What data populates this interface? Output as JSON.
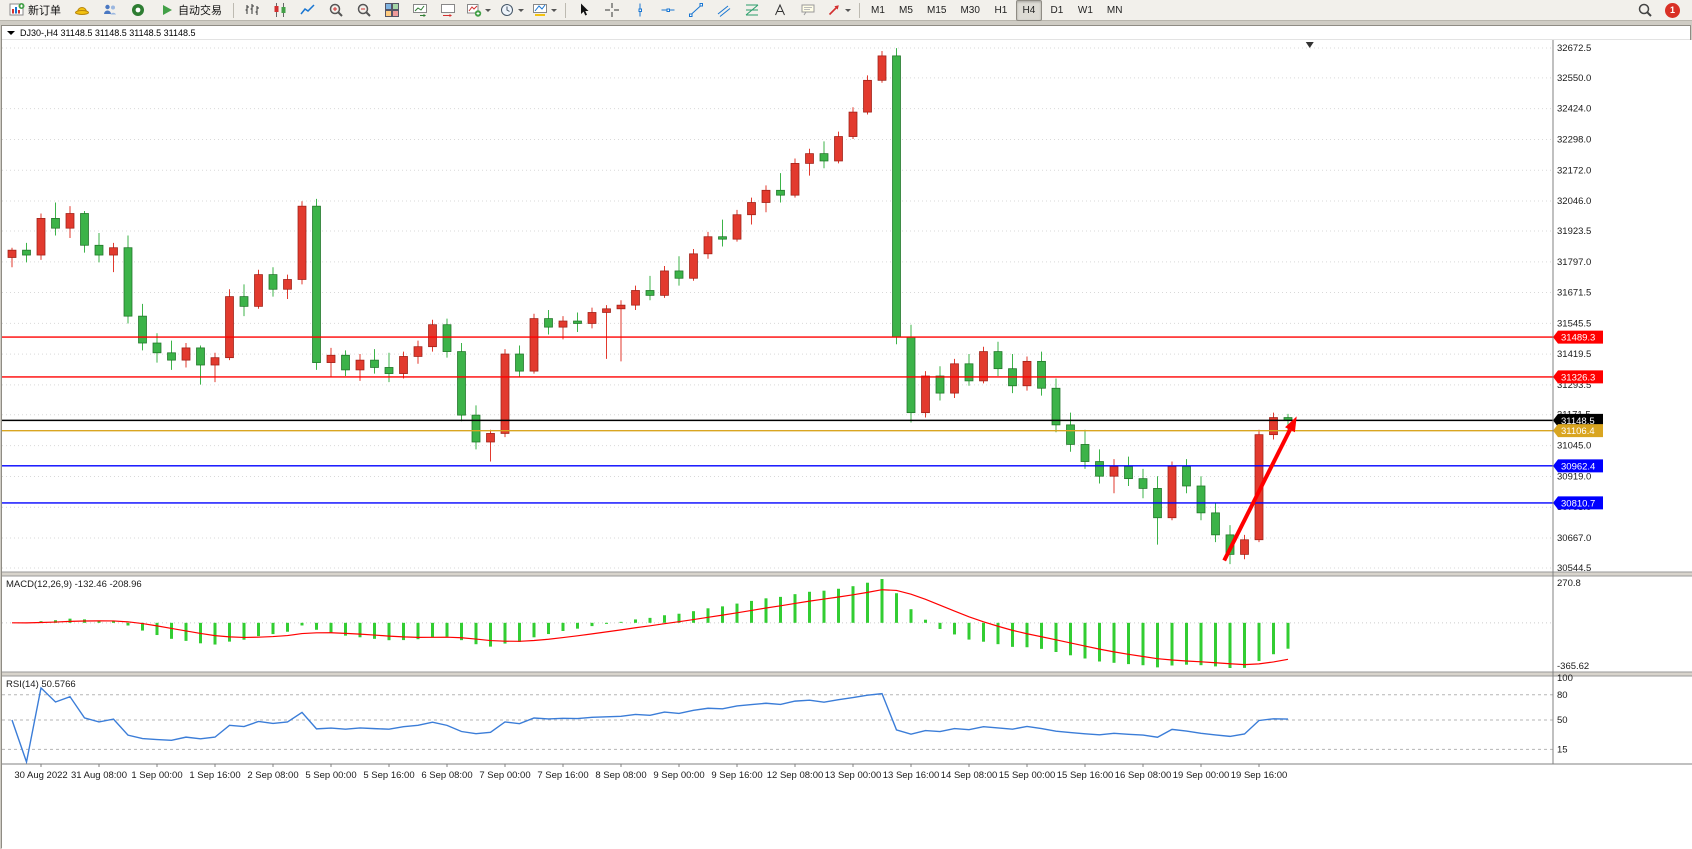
{
  "toolbar": {
    "groups": [
      {
        "items": [
          {
            "icon": "new-order",
            "label": "新订单",
            "name": "new-order-button"
          },
          {
            "icon": "metaeditor",
            "name": "metaeditor-button"
          },
          {
            "icon": "profiles",
            "name": "profiles-button"
          },
          {
            "icon": "market-watch",
            "name": "market-watch-button"
          },
          {
            "icon": "autotrading",
            "label": "自动交易",
            "name": "autotrading-button"
          }
        ]
      },
      {
        "items": [
          {
            "icon": "bar-chart",
            "name": "bar-chart-button"
          },
          {
            "icon": "candlestick",
            "name": "candlestick-chart-button"
          },
          {
            "icon": "line-chart",
            "name": "line-chart-button"
          },
          {
            "icon": "zoom-in",
            "name": "zoom-in-button"
          },
          {
            "icon": "zoom-out",
            "name": "zoom-out-button"
          },
          {
            "icon": "tile-windows",
            "name": "tile-windows-button"
          },
          {
            "icon": "auto-scroll",
            "name": "auto-scroll-button"
          },
          {
            "icon": "chart-shift",
            "name": "chart-shift-button"
          },
          {
            "icon": "indicators",
            "name": "indicators-button",
            "dropdown": true
          },
          {
            "icon": "periods",
            "name": "periods-button",
            "dropdown": true
          },
          {
            "icon": "templates",
            "name": "templates-button",
            "dropdown": true
          }
        ]
      },
      {
        "items": [
          {
            "icon": "cursor",
            "name": "cursor-button"
          },
          {
            "icon": "crosshair",
            "name": "crosshair-button"
          },
          {
            "icon": "vertical-line",
            "name": "vertical-line-button"
          },
          {
            "icon": "horizontal-line",
            "name": "horizontal-line-button"
          },
          {
            "icon": "trendline",
            "name": "trendline-button"
          },
          {
            "icon": "channel",
            "name": "equidistant-channel-button"
          },
          {
            "icon": "fibonacci",
            "name": "fibonacci-button"
          },
          {
            "icon": "text",
            "name": "text-button"
          },
          {
            "icon": "text-label",
            "name": "text-label-button"
          },
          {
            "icon": "arrows",
            "name": "arrows-button",
            "dropdown": true
          }
        ]
      }
    ],
    "timeframes": [
      "M1",
      "M5",
      "M15",
      "M30",
      "H1",
      "H4",
      "D1",
      "W1",
      "MN"
    ],
    "active_timeframe": "H4",
    "notification_count": "1"
  },
  "chart_data": {
    "type": "candlestick",
    "symbol": "DJ30-",
    "timeframe": "H4",
    "title_text": "DJ30-,H4 31148.5 31148.5 31148.5 31148.5",
    "open": 31148.5,
    "high": 31148.5,
    "low": 31148.5,
    "close": 31148.5,
    "current_price": 31148.5,
    "price_range": {
      "top": 32705,
      "bottom": 30528
    },
    "colors": {
      "up": "#e23a2e",
      "up_border": "#9c1f16",
      "down": "#3cb349",
      "down_border": "#1f7327",
      "grid": "#d9d9d9",
      "background": "#ffffff"
    },
    "y_ticks": [
      "32672.5",
      "32550.0",
      "32424.0",
      "32298.0",
      "32172.0",
      "32046.0",
      "31923.5",
      "31797.0",
      "31671.5",
      "31545.5",
      "31419.5",
      "31293.5",
      "31171.5",
      "31045.0",
      "30919.0",
      "30793.0",
      "30667.0",
      "30544.5"
    ],
    "x_labels": [
      "30 Aug 2022",
      "31 Aug 08:00",
      "1 Sep 00:00",
      "1 Sep 16:00",
      "2 Sep 08:00",
      "5 Sep 00:00",
      "5 Sep 16:00",
      "6 Sep 08:00",
      "7 Sep 00:00",
      "7 Sep 16:00",
      "8 Sep 08:00",
      "9 Sep 00:00",
      "9 Sep 16:00",
      "12 Sep 08:00",
      "13 Sep 00:00",
      "13 Sep 16:00",
      "14 Sep 08:00",
      "15 Sep 00:00",
      "15 Sep 16:00",
      "16 Sep 08:00",
      "19 Sep 00:00",
      "19 Sep 16:00"
    ],
    "x_label_indices": [
      2,
      6,
      10,
      14,
      18,
      22,
      26,
      30,
      34,
      38,
      42,
      46,
      50,
      54,
      58,
      62,
      66,
      70,
      74,
      78,
      82,
      86
    ],
    "candles": [
      [
        31815,
        31855,
        31775,
        31845
      ],
      [
        31845,
        31875,
        31795,
        31825
      ],
      [
        31825,
        31995,
        31805,
        31975
      ],
      [
        31975,
        32040,
        31905,
        31935
      ],
      [
        31935,
        32025,
        31895,
        31995
      ],
      [
        31995,
        32005,
        31835,
        31865
      ],
      [
        31865,
        31915,
        31795,
        31825
      ],
      [
        31825,
        31875,
        31755,
        31855
      ],
      [
        31855,
        31905,
        31545,
        31575
      ],
      [
        31575,
        31625,
        31435,
        31465
      ],
      [
        31465,
        31505,
        31385,
        31425
      ],
      [
        31425,
        31475,
        31355,
        31395
      ],
      [
        31395,
        31465,
        31365,
        31445
      ],
      [
        31445,
        31455,
        31295,
        31375
      ],
      [
        31375,
        31425,
        31305,
        31405
      ],
      [
        31405,
        31685,
        31395,
        31655
      ],
      [
        31655,
        31705,
        31575,
        31615
      ],
      [
        31615,
        31765,
        31605,
        31745
      ],
      [
        31745,
        31775,
        31655,
        31685
      ],
      [
        31685,
        31745,
        31645,
        31725
      ],
      [
        31725,
        32045,
        31705,
        32025
      ],
      [
        32025,
        32055,
        31355,
        31385
      ],
      [
        31385,
        31445,
        31325,
        31415
      ],
      [
        31415,
        31435,
        31330,
        31355
      ],
      [
        31355,
        31420,
        31310,
        31395
      ],
      [
        31395,
        31440,
        31340,
        31365
      ],
      [
        31365,
        31425,
        31305,
        31340
      ],
      [
        31340,
        31430,
        31320,
        31410
      ],
      [
        31410,
        31475,
        31380,
        31450
      ],
      [
        31450,
        31560,
        31430,
        31540
      ],
      [
        31540,
        31565,
        31405,
        31430
      ],
      [
        31430,
        31465,
        31145,
        31170
      ],
      [
        31170,
        31210,
        31030,
        31060
      ],
      [
        31060,
        31110,
        30980,
        31095
      ],
      [
        31095,
        31440,
        31080,
        31420
      ],
      [
        31420,
        31455,
        31325,
        31350
      ],
      [
        31350,
        31585,
        31340,
        31565
      ],
      [
        31565,
        31600,
        31500,
        31530
      ],
      [
        31530,
        31575,
        31480,
        31555
      ],
      [
        31555,
        31590,
        31510,
        31545
      ],
      [
        31545,
        31610,
        31525,
        31590
      ],
      [
        31590,
        31620,
        31400,
        31605
      ],
      [
        31605,
        31640,
        31390,
        31620
      ],
      [
        31620,
        31700,
        31600,
        31680
      ],
      [
        31680,
        31740,
        31640,
        31660
      ],
      [
        31660,
        31780,
        31650,
        31760
      ],
      [
        31760,
        31820,
        31700,
        31730
      ],
      [
        31730,
        31850,
        31720,
        31830
      ],
      [
        31830,
        31920,
        31810,
        31900
      ],
      [
        31900,
        31970,
        31860,
        31890
      ],
      [
        31890,
        32010,
        31880,
        31990
      ],
      [
        31990,
        32060,
        31950,
        32040
      ],
      [
        32040,
        32110,
        32000,
        32090
      ],
      [
        32090,
        32160,
        32040,
        32070
      ],
      [
        32070,
        32220,
        32060,
        32200
      ],
      [
        32200,
        32260,
        32150,
        32240
      ],
      [
        32240,
        32290,
        32180,
        32210
      ],
      [
        32210,
        32330,
        32200,
        32310
      ],
      [
        32310,
        32430,
        32300,
        32410
      ],
      [
        32410,
        32560,
        32400,
        32540
      ],
      [
        32540,
        32660,
        32530,
        32640
      ],
      [
        32640,
        32672,
        31460,
        31490
      ],
      [
        31490,
        31540,
        31140,
        31180
      ],
      [
        31180,
        31350,
        31160,
        31330
      ],
      [
        31330,
        31370,
        31230,
        31260
      ],
      [
        31260,
        31400,
        31240,
        31380
      ],
      [
        31380,
        31420,
        31290,
        31310
      ],
      [
        31310,
        31450,
        31300,
        31430
      ],
      [
        31430,
        31470,
        31330,
        31360
      ],
      [
        31360,
        31420,
        31260,
        31290
      ],
      [
        31290,
        31410,
        31270,
        31390
      ],
      [
        31390,
        31430,
        31250,
        31280
      ],
      [
        31280,
        31320,
        31100,
        31130
      ],
      [
        31130,
        31180,
        31020,
        31050
      ],
      [
        31050,
        31110,
        30950,
        30980
      ],
      [
        30980,
        31030,
        30890,
        30920
      ],
      [
        30920,
        30990,
        30850,
        30960
      ],
      [
        30960,
        31000,
        30880,
        30910
      ],
      [
        30910,
        30950,
        30830,
        30870
      ],
      [
        30870,
        30920,
        30640,
        30750
      ],
      [
        30750,
        30980,
        30740,
        30960
      ],
      [
        30960,
        30990,
        30850,
        30880
      ],
      [
        30880,
        30920,
        30740,
        30770
      ],
      [
        30770,
        30810,
        30650,
        30680
      ],
      [
        30680,
        30720,
        30560,
        30600
      ],
      [
        30600,
        30680,
        30580,
        30660
      ],
      [
        30660,
        31110,
        30650,
        31090
      ],
      [
        31090,
        31180,
        31070,
        31160
      ],
      [
        31160,
        31175,
        31110,
        31148.5
      ]
    ],
    "hlines": [
      {
        "price": 31489.3,
        "color": "#ff0000",
        "label": "31489.3"
      },
      {
        "price": 31326.3,
        "color": "#ff0000",
        "label": "31326.3"
      },
      {
        "price": 31148.5,
        "color": "#000000",
        "label": "31148.5"
      },
      {
        "price": 31106.4,
        "color": "#d9a520",
        "label": "31106.4"
      },
      {
        "price": 30962.4,
        "color": "#0000ff",
        "label": "30962.4"
      },
      {
        "price": 30810.7,
        "color": "#0000ff",
        "label": "30810.7"
      }
    ],
    "indicators": [
      {
        "name": "MACD",
        "label": "MACD(12,26,9) -132.46 -208.96",
        "params": [
          12,
          26,
          9
        ],
        "main_value": "-132.46",
        "signal_value": "-208.96",
        "scale_labels": [
          "270.8",
          "-365.62"
        ],
        "histogram_color": "#32cd32",
        "signal_color": "#ff0000"
      },
      {
        "name": "RSI",
        "label": "RSI(14) 50.5766",
        "period": 14,
        "value": "50.5766",
        "scale_labels": [
          "100",
          "80",
          "50",
          "15"
        ],
        "scale_values": [
          100,
          80,
          50,
          15
        ],
        "levels": [
          80,
          50,
          15
        ],
        "line_color": "#3b7dd8"
      }
    ],
    "annotation_arrow": {
      "color": "#ff0000",
      "from": {
        "index": 83.6,
        "price": 30575
      },
      "to": {
        "index": 88.6,
        "price": 31165
      }
    },
    "shift_marker_index": 89.5
  }
}
